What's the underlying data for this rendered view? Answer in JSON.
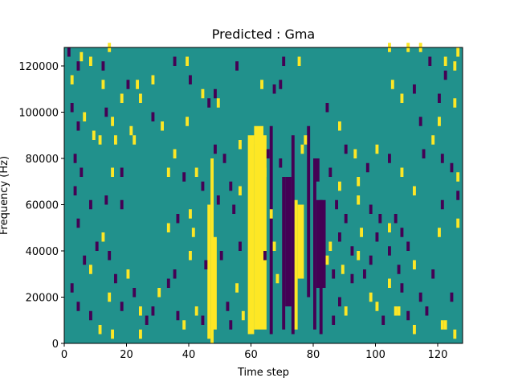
{
  "chart_data": {
    "type": "heatmap",
    "title": "Predicted : Gma",
    "xlabel": "Time step",
    "ylabel": "Frequency (Hz)",
    "xlim": [
      0,
      128
    ],
    "ylim": [
      0,
      128000
    ],
    "x_ticks": [
      "0",
      "20",
      "40",
      "60",
      "80",
      "100",
      "120"
    ],
    "y_ticks": [
      "0",
      "20000",
      "40000",
      "60000",
      "80000",
      "100000",
      "120000"
    ],
    "grid": false,
    "legend": "none",
    "colormap": {
      "background": "#21918c",
      "low": "#440154",
      "high": "#fde725"
    },
    "note_on_values": "approximate cells; yellow=high, purple=low, teal=background",
    "cell_height_hz": 4000,
    "bands": [
      {
        "x": 59,
        "w": 2,
        "y0": 4000,
        "y1": 90000,
        "level": "high"
      },
      {
        "x": 61,
        "w": 4,
        "y0": 6000,
        "y1": 90000,
        "level": "high"
      },
      {
        "x": 61,
        "w": 3,
        "y0": 86000,
        "y1": 94000,
        "level": "high"
      },
      {
        "x": 66,
        "w": 1,
        "y0": 4000,
        "y1": 94000,
        "level": "low"
      },
      {
        "x": 70,
        "w": 1,
        "y0": 6000,
        "y1": 72000,
        "level": "low"
      },
      {
        "x": 71,
        "w": 2,
        "y0": 16000,
        "y1": 72000,
        "level": "low"
      },
      {
        "x": 73,
        "w": 1,
        "y0": 4000,
        "y1": 90000,
        "level": "low"
      },
      {
        "x": 74,
        "w": 1,
        "y0": 6000,
        "y1": 62000,
        "level": "high"
      },
      {
        "x": 75,
        "w": 2,
        "y0": 28000,
        "y1": 60000,
        "level": "high"
      },
      {
        "x": 78,
        "w": 1,
        "y0": 20000,
        "y1": 94000,
        "level": "low"
      },
      {
        "x": 80,
        "w": 1,
        "y0": 6000,
        "y1": 72000,
        "level": "low"
      },
      {
        "x": 81,
        "w": 3,
        "y0": 24000,
        "y1": 62000,
        "level": "low"
      },
      {
        "x": 80,
        "w": 2,
        "y0": 70000,
        "y1": 80000,
        "level": "low"
      },
      {
        "x": 82,
        "w": 1,
        "y0": 4000,
        "y1": 62000,
        "level": "low"
      },
      {
        "x": 46,
        "w": 1,
        "y0": 2000,
        "y1": 60000,
        "level": "high"
      },
      {
        "x": 47,
        "w": 1,
        "y0": 0,
        "y1": 80000,
        "level": "high"
      },
      {
        "x": 48,
        "w": 1,
        "y0": 6000,
        "y1": 46000,
        "level": "high"
      }
    ],
    "cells": [
      {
        "x": 1,
        "y": 124000,
        "level": "low"
      },
      {
        "x": 4,
        "y": 118000,
        "level": "low"
      },
      {
        "x": 5,
        "y": 122000,
        "level": "high"
      },
      {
        "x": 8,
        "y": 120000,
        "level": "high"
      },
      {
        "x": 12,
        "y": 118000,
        "level": "low"
      },
      {
        "x": 14,
        "y": 126000,
        "level": "high"
      },
      {
        "x": 2,
        "y": 112000,
        "level": "high"
      },
      {
        "x": 12,
        "y": 110000,
        "level": "high"
      },
      {
        "x": 20,
        "y": 110000,
        "level": "low"
      },
      {
        "x": 23,
        "y": 110000,
        "level": "high"
      },
      {
        "x": 28,
        "y": 112000,
        "level": "high"
      },
      {
        "x": 35,
        "y": 120000,
        "level": "low"
      },
      {
        "x": 39,
        "y": 120000,
        "level": "high"
      },
      {
        "x": 40,
        "y": 112000,
        "level": "low"
      },
      {
        "x": 44,
        "y": 106000,
        "level": "high"
      },
      {
        "x": 46,
        "y": 102000,
        "level": "low"
      },
      {
        "x": 48,
        "y": 106000,
        "level": "low"
      },
      {
        "x": 49,
        "y": 102000,
        "level": "high"
      },
      {
        "x": 55,
        "y": 118000,
        "level": "low"
      },
      {
        "x": 63,
        "y": 110000,
        "level": "high"
      },
      {
        "x": 67,
        "y": 108000,
        "level": "low"
      },
      {
        "x": 69,
        "y": 110000,
        "level": "low"
      },
      {
        "x": 70,
        "y": 120000,
        "level": "low"
      },
      {
        "x": 75,
        "y": 120000,
        "level": "high"
      },
      {
        "x": 2,
        "y": 100000,
        "level": "low"
      },
      {
        "x": 4,
        "y": 92000,
        "level": "low"
      },
      {
        "x": 6,
        "y": 96000,
        "level": "high"
      },
      {
        "x": 9,
        "y": 88000,
        "level": "high"
      },
      {
        "x": 11,
        "y": 86000,
        "level": "high"
      },
      {
        "x": 13,
        "y": 98000,
        "level": "low"
      },
      {
        "x": 15,
        "y": 94000,
        "level": "high"
      },
      {
        "x": 16,
        "y": 86000,
        "level": "high"
      },
      {
        "x": 18,
        "y": 104000,
        "level": "high"
      },
      {
        "x": 21,
        "y": 90000,
        "level": "high"
      },
      {
        "x": 22,
        "y": 86000,
        "level": "high"
      },
      {
        "x": 24,
        "y": 104000,
        "level": "high"
      },
      {
        "x": 28,
        "y": 96000,
        "level": "low"
      },
      {
        "x": 31,
        "y": 92000,
        "level": "high"
      },
      {
        "x": 35,
        "y": 80000,
        "level": "high"
      },
      {
        "x": 39,
        "y": 94000,
        "level": "high"
      },
      {
        "x": 3,
        "y": 78000,
        "level": "low"
      },
      {
        "x": 5,
        "y": 72000,
        "level": "low"
      },
      {
        "x": 3,
        "y": 64000,
        "level": "low"
      },
      {
        "x": 15,
        "y": 72000,
        "level": "high"
      },
      {
        "x": 18,
        "y": 72000,
        "level": "low"
      },
      {
        "x": 13,
        "y": 60000,
        "level": "low"
      },
      {
        "x": 18,
        "y": 58000,
        "level": "low"
      },
      {
        "x": 8,
        "y": 58000,
        "level": "low"
      },
      {
        "x": 33,
        "y": 72000,
        "level": "high"
      },
      {
        "x": 38,
        "y": 70000,
        "level": "low"
      },
      {
        "x": 42,
        "y": 72000,
        "level": "high"
      },
      {
        "x": 48,
        "y": 82000,
        "level": "low"
      },
      {
        "x": 51,
        "y": 78000,
        "level": "low"
      },
      {
        "x": 56,
        "y": 84000,
        "level": "high"
      },
      {
        "x": 56,
        "y": 64000,
        "level": "high"
      },
      {
        "x": 49,
        "y": 60000,
        "level": "low"
      },
      {
        "x": 53,
        "y": 66000,
        "level": "low"
      },
      {
        "x": 44,
        "y": 66000,
        "level": "low"
      },
      {
        "x": 36,
        "y": 52000,
        "level": "low"
      },
      {
        "x": 33,
        "y": 48000,
        "level": "high"
      },
      {
        "x": 41,
        "y": 46000,
        "level": "high"
      },
      {
        "x": 40,
        "y": 54000,
        "level": "high"
      },
      {
        "x": 54,
        "y": 56000,
        "level": "low"
      },
      {
        "x": 56,
        "y": 40000,
        "level": "low"
      },
      {
        "x": 50,
        "y": 36000,
        "level": "low"
      },
      {
        "x": 45,
        "y": 32000,
        "level": "low"
      },
      {
        "x": 40,
        "y": 36000,
        "level": "high"
      },
      {
        "x": 35,
        "y": 28000,
        "level": "low"
      },
      {
        "x": 33,
        "y": 24000,
        "level": "low"
      },
      {
        "x": 30,
        "y": 20000,
        "level": "high"
      },
      {
        "x": 28,
        "y": 12000,
        "level": "low"
      },
      {
        "x": 26,
        "y": 8000,
        "level": "low"
      },
      {
        "x": 24,
        "y": 12000,
        "level": "high"
      },
      {
        "x": 22,
        "y": 20000,
        "level": "low"
      },
      {
        "x": 20,
        "y": 28000,
        "level": "high"
      },
      {
        "x": 16,
        "y": 26000,
        "level": "low"
      },
      {
        "x": 14,
        "y": 36000,
        "level": "low"
      },
      {
        "x": 12,
        "y": 44000,
        "level": "high"
      },
      {
        "x": 10,
        "y": 40000,
        "level": "low"
      },
      {
        "x": 8,
        "y": 30000,
        "level": "high"
      },
      {
        "x": 6,
        "y": 34000,
        "level": "low"
      },
      {
        "x": 4,
        "y": 50000,
        "level": "low"
      },
      {
        "x": 2,
        "y": 22000,
        "level": "low"
      },
      {
        "x": 4,
        "y": 14000,
        "level": "low"
      },
      {
        "x": 8,
        "y": 10000,
        "level": "low"
      },
      {
        "x": 11,
        "y": 4000,
        "level": "high"
      },
      {
        "x": 14,
        "y": 18000,
        "level": "high"
      },
      {
        "x": 15,
        "y": 2000,
        "level": "high"
      },
      {
        "x": 18,
        "y": 14000,
        "level": "low"
      },
      {
        "x": 24,
        "y": 2000,
        "level": "high"
      },
      {
        "x": 36,
        "y": 10000,
        "level": "low"
      },
      {
        "x": 38,
        "y": 6000,
        "level": "high"
      },
      {
        "x": 42,
        "y": 12000,
        "level": "high"
      },
      {
        "x": 44,
        "y": 8000,
        "level": "low"
      },
      {
        "x": 52,
        "y": 14000,
        "level": "low"
      },
      {
        "x": 53,
        "y": 6000,
        "level": "low"
      },
      {
        "x": 55,
        "y": 22000,
        "level": "high"
      },
      {
        "x": 57,
        "y": 10000,
        "level": "high"
      },
      {
        "x": 86,
        "y": 8000,
        "level": "low"
      },
      {
        "x": 88,
        "y": 16000,
        "level": "low"
      },
      {
        "x": 90,
        "y": 12000,
        "level": "high"
      },
      {
        "x": 92,
        "y": 26000,
        "level": "low"
      },
      {
        "x": 94,
        "y": 36000,
        "level": "high"
      },
      {
        "x": 96,
        "y": 28000,
        "level": "low"
      },
      {
        "x": 98,
        "y": 18000,
        "level": "high"
      },
      {
        "x": 100,
        "y": 14000,
        "level": "high"
      },
      {
        "x": 100,
        "y": 44000,
        "level": "low"
      },
      {
        "x": 102,
        "y": 8000,
        "level": "low"
      },
      {
        "x": 106,
        "y": 12000,
        "level": "high"
      },
      {
        "x": 107,
        "y": 12000,
        "level": "high"
      },
      {
        "x": 104,
        "y": 24000,
        "level": "high"
      },
      {
        "x": 108,
        "y": 22000,
        "level": "low"
      },
      {
        "x": 110,
        "y": 10000,
        "level": "low"
      },
      {
        "x": 112,
        "y": 4000,
        "level": "high"
      },
      {
        "x": 114,
        "y": 18000,
        "level": "low"
      },
      {
        "x": 116,
        "y": 12000,
        "level": "low"
      },
      {
        "x": 121,
        "y": 6000,
        "level": "high"
      },
      {
        "x": 122,
        "y": 6000,
        "level": "high"
      },
      {
        "x": 125,
        "y": 2000,
        "level": "high"
      },
      {
        "x": 124,
        "y": 18000,
        "level": "low"
      },
      {
        "x": 118,
        "y": 28000,
        "level": "low"
      },
      {
        "x": 112,
        "y": 32000,
        "level": "high"
      },
      {
        "x": 110,
        "y": 40000,
        "level": "low"
      },
      {
        "x": 108,
        "y": 46000,
        "level": "low"
      },
      {
        "x": 106,
        "y": 52000,
        "level": "low"
      },
      {
        "x": 104,
        "y": 48000,
        "level": "high"
      },
      {
        "x": 101,
        "y": 52000,
        "level": "low"
      },
      {
        "x": 98,
        "y": 56000,
        "level": "low"
      },
      {
        "x": 94,
        "y": 60000,
        "level": "high"
      },
      {
        "x": 90,
        "y": 52000,
        "level": "low"
      },
      {
        "x": 87,
        "y": 58000,
        "level": "low"
      },
      {
        "x": 85,
        "y": 72000,
        "level": "low"
      },
      {
        "x": 88,
        "y": 66000,
        "level": "high"
      },
      {
        "x": 94,
        "y": 68000,
        "level": "high"
      },
      {
        "x": 97,
        "y": 74000,
        "level": "low"
      },
      {
        "x": 100,
        "y": 82000,
        "level": "high"
      },
      {
        "x": 104,
        "y": 78000,
        "level": "low"
      },
      {
        "x": 108,
        "y": 72000,
        "level": "high"
      },
      {
        "x": 112,
        "y": 64000,
        "level": "high"
      },
      {
        "x": 115,
        "y": 80000,
        "level": "low"
      },
      {
        "x": 118,
        "y": 86000,
        "level": "high"
      },
      {
        "x": 121,
        "y": 78000,
        "level": "low"
      },
      {
        "x": 124,
        "y": 74000,
        "level": "low"
      },
      {
        "x": 126,
        "y": 70000,
        "level": "high"
      },
      {
        "x": 126,
        "y": 62000,
        "level": "low"
      },
      {
        "x": 121,
        "y": 58000,
        "level": "low"
      },
      {
        "x": 120,
        "y": 46000,
        "level": "high"
      },
      {
        "x": 126,
        "y": 50000,
        "level": "high"
      },
      {
        "x": 114,
        "y": 94000,
        "level": "low"
      },
      {
        "x": 120,
        "y": 94000,
        "level": "high"
      },
      {
        "x": 125,
        "y": 102000,
        "level": "high"
      },
      {
        "x": 120,
        "y": 104000,
        "level": "low"
      },
      {
        "x": 112,
        "y": 108000,
        "level": "low"
      },
      {
        "x": 108,
        "y": 104000,
        "level": "high"
      },
      {
        "x": 105,
        "y": 110000,
        "level": "high"
      },
      {
        "x": 110,
        "y": 126000,
        "level": "high"
      },
      {
        "x": 104,
        "y": 126000,
        "level": "high"
      },
      {
        "x": 114,
        "y": 126000,
        "level": "high"
      },
      {
        "x": 117,
        "y": 120000,
        "level": "low"
      },
      {
        "x": 122,
        "y": 114000,
        "level": "low"
      },
      {
        "x": 125,
        "y": 118000,
        "level": "high"
      },
      {
        "x": 126,
        "y": 124000,
        "level": "high"
      },
      {
        "x": 122,
        "y": 120000,
        "level": "high"
      },
      {
        "x": 84,
        "y": 100000,
        "level": "low"
      },
      {
        "x": 88,
        "y": 92000,
        "level": "high"
      },
      {
        "x": 90,
        "y": 82000,
        "level": "low"
      },
      {
        "x": 93,
        "y": 80000,
        "level": "high"
      },
      {
        "x": 65,
        "y": 80000,
        "level": "low"
      },
      {
        "x": 69,
        "y": 76000,
        "level": "low"
      },
      {
        "x": 64,
        "y": 72000,
        "level": "high"
      },
      {
        "x": 66,
        "y": 54000,
        "level": "high"
      },
      {
        "x": 67,
        "y": 40000,
        "level": "high"
      },
      {
        "x": 68,
        "y": 26000,
        "level": "high"
      },
      {
        "x": 64,
        "y": 36000,
        "level": "low"
      },
      {
        "x": 76,
        "y": 82000,
        "level": "high"
      },
      {
        "x": 77,
        "y": 86000,
        "level": "high"
      },
      {
        "x": 84,
        "y": 34000,
        "level": "high"
      },
      {
        "x": 85,
        "y": 40000,
        "level": "high"
      },
      {
        "x": 86,
        "y": 28000,
        "level": "low"
      },
      {
        "x": 88,
        "y": 44000,
        "level": "low"
      },
      {
        "x": 89,
        "y": 30000,
        "level": "high"
      },
      {
        "x": 92,
        "y": 38000,
        "level": "low"
      },
      {
        "x": 95,
        "y": 46000,
        "level": "high"
      },
      {
        "x": 98,
        "y": 34000,
        "level": "low"
      },
      {
        "x": 104,
        "y": 38000,
        "level": "low"
      },
      {
        "x": 107,
        "y": 30000,
        "level": "low"
      }
    ]
  }
}
